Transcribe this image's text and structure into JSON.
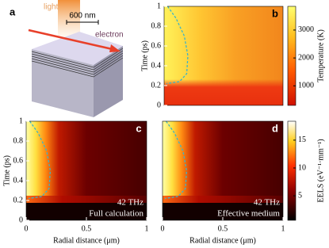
{
  "panel_a": {
    "label": "a",
    "light": "light",
    "scale": "600 nm",
    "electron": "electron"
  },
  "chart_data": [
    {
      "type": "heatmap",
      "panel_label": "b",
      "y_label": "Time (ps)",
      "xlim": [
        0,
        1
      ],
      "ylim": [
        0,
        1
      ],
      "yticks": [
        0,
        0.2,
        0.4,
        0.6,
        0.8,
        1
      ],
      "colorbar": {
        "label": "Temperature (K)",
        "lim": [
          300,
          3850
        ],
        "ticks": [
          1000,
          2000,
          3000
        ]
      }
    },
    {
      "type": "heatmap",
      "panel_label": "c",
      "y_label": "Time (ps)",
      "x_label": "Radial distance (μm)",
      "annotations": [
        "42 THz",
        "Full calculation"
      ],
      "xlim": [
        0,
        1
      ],
      "xticks": [
        0,
        0.5,
        1
      ],
      "ylim": [
        0,
        1
      ],
      "yticks": [
        0,
        0.2,
        0.4,
        0.6,
        0.8,
        1
      ]
    },
    {
      "type": "heatmap",
      "panel_label": "d",
      "x_label": "Radial distance (μm)",
      "annotations": [
        "42 THz",
        "Effective medium"
      ],
      "xlim": [
        0,
        1
      ],
      "xticks": [
        0,
        0.5,
        1
      ],
      "ylim": [
        0,
        1
      ],
      "colorbar": {
        "label": "EELS (eV⁻¹·mm⁻¹)",
        "lim": [
          0.6,
          18.4
        ],
        "ticks": [
          5,
          10,
          15
        ]
      }
    }
  ]
}
